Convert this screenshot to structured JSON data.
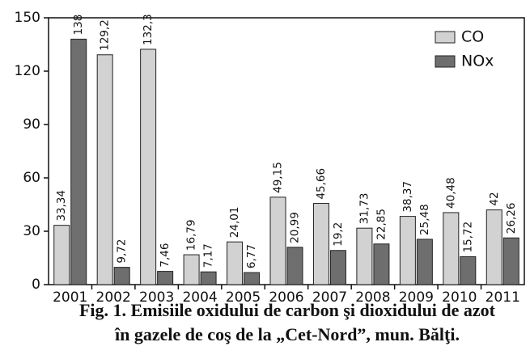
{
  "chart_data": {
    "type": "bar",
    "title": [
      "Fig. 1. Emisiile oxidului de carbon şi dioxidului de azot",
      "în gazele de coş de la „Cet-Nord”, mun. Bălţi."
    ],
    "categories": [
      "2001",
      "2002",
      "2003",
      "2004",
      "2005",
      "2006",
      "2007",
      "2008",
      "2009",
      "2010",
      "2011"
    ],
    "series": [
      {
        "name": "CO",
        "color": "#d2d2d2",
        "values": [
          33.34,
          129.2,
          132.3,
          16.79,
          24.01,
          49.15,
          45.66,
          31.73,
          38.37,
          40.48,
          42
        ],
        "value_labels": [
          "33,34",
          "129,2",
          "132,3",
          "16,79",
          "24,01",
          "49,15",
          "45,66",
          "31,73",
          "38,37",
          "40,48",
          "42"
        ]
      },
      {
        "name": "NOx",
        "color": "#6e6e6e",
        "values": [
          138,
          9.72,
          7.46,
          7.17,
          6.77,
          20.99,
          19.2,
          22.85,
          25.48,
          15.72,
          26.26
        ],
        "value_labels": [
          "138",
          "9,72",
          "7,46",
          "7,17",
          "6,77",
          "20,99",
          "19,2",
          "22,85",
          "25,48",
          "15,72",
          "26,26"
        ]
      }
    ],
    "ylim": [
      0,
      150
    ],
    "yticks": [
      0,
      30,
      60,
      90,
      120,
      150
    ],
    "legend": "upper right"
  }
}
